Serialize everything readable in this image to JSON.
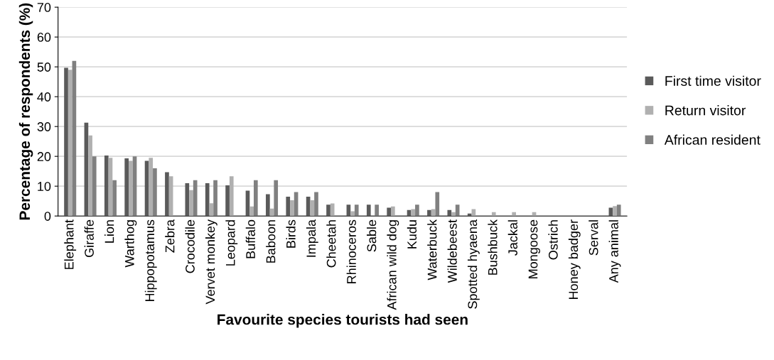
{
  "chart_data": {
    "type": "bar",
    "xlabel": "Favourite species tourists had seen",
    "ylabel": "Percentage of respondents (%)",
    "categories": [
      "Elephant",
      "Giraffe",
      "Lion",
      "Warthog",
      "Hippopotamus",
      "Zebra",
      "Crocodile",
      "Vervet monkey",
      "Leopard",
      "Buffalo",
      "Baboon",
      "Birds",
      "Impala",
      "Cheetah",
      "Rhinoceros",
      "Sable",
      "African wild dog",
      "Kudu",
      "Waterbuck",
      "Wildebeest",
      "Spotted hyaena",
      "Bushbuck",
      "Jackal",
      "Mongoose",
      "Ostrich",
      "Honey badger",
      "Serval",
      "Any animal"
    ],
    "series": [
      {
        "name": "First time visitor",
        "color": "#5a5a5a",
        "values": [
          49.7,
          31.3,
          20.3,
          19.3,
          18.5,
          14.7,
          11,
          11,
          10.3,
          8.5,
          7.3,
          6.5,
          6.5,
          3.8,
          3.8,
          3.8,
          2.8,
          2,
          2,
          2,
          0.8,
          0,
          0,
          0,
          0,
          0,
          0,
          2.8
        ]
      },
      {
        "name": "Return visitor",
        "color": "#b0b0b0",
        "values": [
          49,
          27,
          19.5,
          18.5,
          19.5,
          13.3,
          8.7,
          4.3,
          13.3,
          3.2,
          2.5,
          5.3,
          5.3,
          4.2,
          1.6,
          0,
          3.2,
          2.3,
          2.3,
          1.3,
          2.3,
          1.3,
          1.3,
          1.3,
          0,
          0,
          0,
          3.3
        ]
      },
      {
        "name": "African resident",
        "color": "#808080",
        "values": [
          52,
          20,
          12,
          20,
          16,
          0,
          12,
          12,
          0,
          12,
          12,
          8,
          8,
          0,
          3.8,
          3.8,
          0,
          3.8,
          8,
          3.8,
          0,
          0,
          0,
          0,
          0,
          0,
          0,
          3.8
        ]
      }
    ],
    "ylim": [
      0,
      70
    ],
    "yticks": [
      0,
      10,
      20,
      30,
      40,
      50,
      60,
      70
    ],
    "grid": "y",
    "legend": "right"
  }
}
